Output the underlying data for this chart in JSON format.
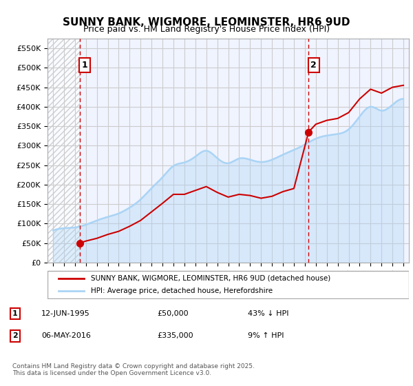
{
  "title": "SUNNY BANK, WIGMORE, LEOMINSTER, HR6 9UD",
  "subtitle": "Price paid vs. HM Land Registry's House Price Index (HPI)",
  "xlabel": "",
  "ylabel": "",
  "ylim": [
    0,
    575000
  ],
  "yticks": [
    0,
    50000,
    100000,
    150000,
    200000,
    250000,
    300000,
    350000,
    400000,
    450000,
    500000,
    550000
  ],
  "ytick_labels": [
    "£0",
    "£50K",
    "£100K",
    "£150K",
    "£200K",
    "£250K",
    "£300K",
    "£350K",
    "£400K",
    "£450K",
    "£500K",
    "£550K"
  ],
  "xmin": 1992.5,
  "xmax": 2025.5,
  "hpi_color": "#aad4f5",
  "price_color": "#cc0000",
  "hatch_color": "#d0d0d0",
  "grid_color": "#cccccc",
  "vline_color": "#cc0000",
  "background_color": "#f0f4ff",
  "sale1_x": 1995.44,
  "sale1_y": 50000,
  "sale2_x": 2016.34,
  "sale2_y": 335000,
  "legend_line1": "SUNNY BANK, WIGMORE, LEOMINSTER, HR6 9UD (detached house)",
  "legend_line2": "HPI: Average price, detached house, Herefordshire",
  "annotation1": "1",
  "annotation2": "2",
  "note1_label": "1",
  "note1_date": "12-JUN-1995",
  "note1_price": "£50,000",
  "note1_hpi": "43% ↓ HPI",
  "note2_label": "2",
  "note2_date": "06-MAY-2016",
  "note2_price": "£335,000",
  "note2_hpi": "9% ↑ HPI",
  "copyright": "Contains HM Land Registry data © Crown copyright and database right 2025.\nThis data is licensed under the Open Government Licence v3.0.",
  "hpi_years": [
    1993,
    1994,
    1995,
    1996,
    1997,
    1998,
    1999,
    2000,
    2001,
    2002,
    2003,
    2004,
    2005,
    2006,
    2007,
    2008,
    2009,
    2010,
    2011,
    2012,
    2013,
    2014,
    2015,
    2016,
    2017,
    2018,
    2019,
    2020,
    2021,
    2022,
    2023,
    2024,
    2025
  ],
  "hpi_values": [
    82000,
    88000,
    90000,
    97000,
    108000,
    117000,
    126000,
    141000,
    162000,
    191000,
    219000,
    248000,
    257000,
    272000,
    287000,
    268000,
    255000,
    267000,
    264000,
    258000,
    264000,
    277000,
    289000,
    303000,
    318000,
    326000,
    330000,
    342000,
    375000,
    400000,
    390000,
    405000,
    420000
  ],
  "price_years": [
    1995.44,
    1996,
    1997,
    1998,
    1999,
    2000,
    2001,
    2002,
    2003,
    2004,
    2005,
    2006,
    2007,
    2008,
    2009,
    2010,
    2011,
    2012,
    2013,
    2014,
    2015,
    2016.34,
    2017,
    2018,
    2019,
    2020,
    2021,
    2022,
    2023,
    2024,
    2025
  ],
  "price_values": [
    50000,
    55000,
    62000,
    72000,
    80000,
    93000,
    108000,
    130000,
    152000,
    175000,
    175000,
    185000,
    195000,
    180000,
    168000,
    175000,
    172000,
    165000,
    170000,
    182000,
    190000,
    335000,
    355000,
    365000,
    370000,
    385000,
    420000,
    445000,
    435000,
    450000,
    455000
  ]
}
